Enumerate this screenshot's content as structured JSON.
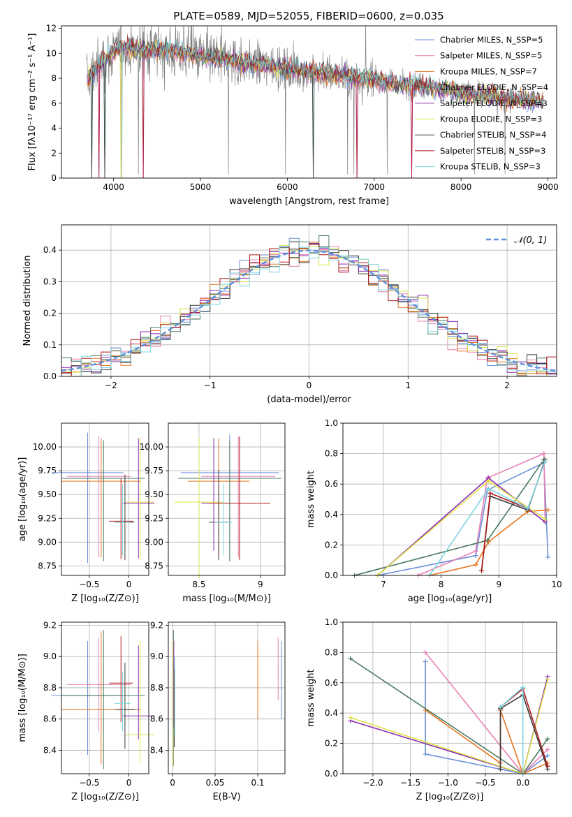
{
  "figure": {
    "title": "PLATE=0589, MJD=52055, FIBERID=0600, z=0.035"
  },
  "chart_data": [
    {
      "type": "line",
      "panel": "spectrum",
      "xlabel": "wavelength [Angstrom, rest frame]",
      "ylabel": "Flux [fλ10⁻¹⁷ erg cm⁻² s⁻¹ A⁻¹]",
      "xlim": [
        3400,
        9100
      ],
      "ylim": [
        0,
        12.2
      ],
      "xticks": [
        4000,
        5000,
        6000,
        7000,
        8000,
        9000
      ],
      "yticks": [
        0,
        2,
        4,
        6,
        8,
        10,
        12
      ],
      "legend_position": "top-right",
      "legend": [
        {
          "name": "Chabrier MILES, N_SSP=5",
          "color": "#6b8fd9"
        },
        {
          "name": "Salpeter MILES, N_SSP=5",
          "color": "#e880b4"
        },
        {
          "name": "Kroupa MILES, N_SSP=7",
          "color": "#e6731e"
        },
        {
          "name": "Chabrier ELODIE, N_SSP=4",
          "color": "#4a7a5e"
        },
        {
          "name": "Salpeter ELODIE, N_SSP=3",
          "color": "#8a2bb0"
        },
        {
          "name": "Kroupa ELODIE, N_SSP=3",
          "color": "#dde34a"
        },
        {
          "name": "Chabrier STELIB, N_SSP=4",
          "color": "#3a3a3a"
        },
        {
          "name": "Salpeter STELIB, N_SSP=3",
          "color": "#b01818"
        },
        {
          "name": "Kroupa STELIB, N_SSP=3",
          "color": "#7fd6e0"
        }
      ],
      "data_envelope": {
        "x": [
          3700,
          3900,
          4100,
          4300,
          4500,
          4700,
          4900,
          5100,
          5300,
          5500,
          5700,
          5900,
          6100,
          6300,
          6500,
          6700,
          6900,
          7100,
          7300,
          7500,
          7700,
          7900,
          8100,
          8300,
          8500,
          8700,
          8900
        ],
        "y": [
          8.0,
          9.6,
          10.5,
          10.2,
          10.3,
          10.1,
          9.9,
          9.6,
          9.5,
          9.3,
          9.1,
          8.9,
          8.7,
          8.5,
          8.4,
          8.1,
          8.0,
          7.8,
          7.5,
          7.4,
          7.2,
          6.9,
          6.7,
          6.6,
          6.4,
          6.3,
          6.2
        ]
      },
      "model_dips_x": [
        3750,
        3830,
        3900,
        4090,
        4340,
        6300,
        6800,
        7430
      ]
    },
    {
      "type": "histogram",
      "panel": "residuals",
      "xlabel": "(data-model)/error",
      "ylabel": "Normed distribution",
      "xlim": [
        -2.5,
        2.5
      ],
      "ylim": [
        0,
        0.48
      ],
      "xticks": [
        -2,
        -1,
        0,
        1,
        2
      ],
      "yticks": [
        0.0,
        0.1,
        0.2,
        0.3,
        0.4
      ],
      "grid": true,
      "legend_position": "top-right",
      "legend": [
        {
          "name": "𝒩(0, 1)",
          "color": "#5b8ddb"
        }
      ],
      "bin_width": 0.1
    },
    {
      "type": "scatter",
      "panel": "age-vs-Z",
      "xlabel": "Z [log₁₀(Z/Z⊙)]",
      "ylabel": "age  [log₁₀(age/yr)]",
      "xlim": [
        -0.85,
        0.25
      ],
      "ylim": [
        8.65,
        10.25
      ],
      "xticks": [
        -0.5,
        0.0
      ],
      "yticks": [
        8.75,
        9.0,
        9.25,
        9.5,
        9.75,
        10.0
      ],
      "grid": true,
      "points": [
        {
          "x": -0.52,
          "y": 9.73,
          "xerr": 0.45,
          "yerr_lo": 0.95,
          "yerr_hi": 0.42,
          "color": "#6b8fd9"
        },
        {
          "x": -0.38,
          "y": 9.69,
          "xerr": 0.4,
          "yerr_lo": 0.85,
          "yerr_hi": 0.42,
          "color": "#e880b4"
        },
        {
          "x": -0.35,
          "y": 9.64,
          "xerr": 0.5,
          "yerr_lo": 0.8,
          "yerr_hi": 0.45,
          "color": "#e6731e"
        },
        {
          "x": -0.32,
          "y": 9.67,
          "xerr": 0.52,
          "yerr_lo": 0.87,
          "yerr_hi": 0.4,
          "color": "#4a7a5e"
        },
        {
          "x": 0.12,
          "y": 9.41,
          "xerr": 0.2,
          "yerr_lo": 0.58,
          "yerr_hi": 0.68,
          "color": "#8a2bb0"
        },
        {
          "x": 0.14,
          "y": 9.42,
          "xerr": 0.18,
          "yerr_lo": 0.6,
          "yerr_hi": 0.68,
          "color": "#dde34a"
        },
        {
          "x": -0.05,
          "y": 9.21,
          "xerr": 0.12,
          "yerr_lo": 0.4,
          "yerr_hi": 0.5,
          "color": "#3a3a3a"
        },
        {
          "x": -0.1,
          "y": 9.22,
          "xerr": 0.15,
          "yerr_lo": 0.4,
          "yerr_hi": 0.45,
          "color": "#b01818"
        },
        {
          "x": -0.08,
          "y": 9.21,
          "xerr": 0.1,
          "yerr_lo": 0.35,
          "yerr_hi": 0.4,
          "color": "#7fd6e0"
        }
      ]
    },
    {
      "type": "scatter",
      "panel": "age-vs-mass",
      "xlabel": "mass [log₁₀(M/M⊙)]",
      "xlim": [
        8.25,
        9.2
      ],
      "ylim": [
        8.65,
        10.25
      ],
      "xticks": [
        8.5,
        9.0
      ],
      "yticks": [
        8.75,
        9.0,
        9.25,
        9.5,
        9.75,
        10.0
      ],
      "grid": true,
      "points": [
        {
          "x": 8.75,
          "y": 9.73,
          "xerr": 0.4,
          "yerr_lo": 0.93,
          "yerr_hi": 0.4,
          "color": "#6b8fd9"
        },
        {
          "x": 8.82,
          "y": 9.69,
          "xerr": 0.3,
          "yerr_lo": 0.85,
          "yerr_hi": 0.42,
          "color": "#e880b4"
        },
        {
          "x": 8.66,
          "y": 9.64,
          "xerr": 0.25,
          "yerr_lo": 0.8,
          "yerr_hi": 0.45,
          "color": "#e6731e"
        },
        {
          "x": 8.75,
          "y": 9.67,
          "xerr": 0.42,
          "yerr_lo": 0.87,
          "yerr_hi": 0.4,
          "color": "#4a7a5e"
        },
        {
          "x": 8.62,
          "y": 9.41,
          "xerr": 0.1,
          "yerr_lo": 0.5,
          "yerr_hi": 0.68,
          "color": "#8a2bb0"
        },
        {
          "x": 8.5,
          "y": 9.42,
          "xerr": 0.2,
          "yerr_lo": 0.8,
          "yerr_hi": 0.68,
          "color": "#dde34a"
        },
        {
          "x": 8.66,
          "y": 9.21,
          "xerr": 0.08,
          "yerr_lo": 0.4,
          "yerr_hi": 0.55,
          "color": "#3a3a3a"
        },
        {
          "x": 8.83,
          "y": 9.41,
          "xerr": 0.25,
          "yerr_lo": 0.6,
          "yerr_hi": 0.7,
          "color": "#b01818"
        },
        {
          "x": 8.7,
          "y": 9.21,
          "xerr": 0.07,
          "yerr_lo": 0.35,
          "yerr_hi": 0.4,
          "color": "#7fd6e0"
        }
      ]
    },
    {
      "type": "line",
      "panel": "mass-weight-vs-age",
      "xlabel": "age  [log₁₀(age/yr)]",
      "ylabel": "mass weight",
      "xlim": [
        6.3,
        10.0
      ],
      "ylim": [
        0,
        1.0
      ],
      "xticks": [
        7,
        8,
        9,
        10
      ],
      "yticks": [
        0.0,
        0.2,
        0.4,
        0.6,
        0.8,
        1.0
      ],
      "grid": true,
      "series": [
        {
          "color": "#6b8fd9",
          "points": [
            [
              6.9,
              0.0
            ],
            [
              8.6,
              0.13
            ],
            [
              8.8,
              0.56
            ],
            [
              9.78,
              0.74
            ],
            [
              9.85,
              0.12
            ]
          ]
        },
        {
          "color": "#e880b4",
          "points": [
            [
              7.6,
              0.0
            ],
            [
              8.6,
              0.16
            ],
            [
              8.8,
              0.64
            ],
            [
              9.78,
              0.8
            ],
            [
              9.8,
              0.36
            ]
          ]
        },
        {
          "color": "#e6731e",
          "points": [
            [
              7.8,
              0.0
            ],
            [
              8.6,
              0.07
            ],
            [
              8.82,
              0.22
            ],
            [
              9.5,
              0.42
            ],
            [
              9.85,
              0.43
            ]
          ]
        },
        {
          "color": "#4a7a5e",
          "points": [
            [
              6.5,
              0.0
            ],
            [
              8.8,
              0.23
            ],
            [
              9.78,
              0.76
            ]
          ]
        },
        {
          "color": "#8a2bb0",
          "points": [
            [
              6.9,
              0.0
            ],
            [
              8.82,
              0.64
            ],
            [
              9.8,
              0.35
            ]
          ]
        },
        {
          "color": "#dde34a",
          "points": [
            [
              6.9,
              0.0
            ],
            [
              8.82,
              0.62
            ],
            [
              9.8,
              0.37
            ]
          ]
        },
        {
          "color": "#3a3a3a",
          "points": [
            [
              8.7,
              0.03
            ],
            [
              8.85,
              0.52
            ],
            [
              9.5,
              0.43
            ],
            [
              9.8,
              0.76
            ]
          ]
        },
        {
          "color": "#b01818",
          "points": [
            [
              8.7,
              0.03
            ],
            [
              8.85,
              0.54
            ],
            [
              9.5,
              0.44
            ]
          ]
        },
        {
          "color": "#7fd6e0",
          "points": [
            [
              7.8,
              0.0
            ],
            [
              8.82,
              0.57
            ],
            [
              9.5,
              0.44
            ],
            [
              9.8,
              0.75
            ]
          ]
        }
      ]
    },
    {
      "type": "scatter",
      "panel": "mass-vs-Z",
      "xlabel": "Z [log₁₀(Z/Z⊙)]",
      "ylabel": "mass [log₁₀(M/M⊙)]",
      "xlim": [
        -0.85,
        0.25
      ],
      "ylim": [
        8.25,
        9.22
      ],
      "xticks": [
        -0.5,
        0.0
      ],
      "yticks": [
        8.4,
        8.6,
        8.8,
        9.0,
        9.2
      ],
      "grid": true,
      "points": [
        {
          "x": -0.52,
          "y": 8.75,
          "xerr": 0.45,
          "yerr_lo": 0.38,
          "yerr_hi": 0.35,
          "color": "#6b8fd9"
        },
        {
          "x": -0.38,
          "y": 8.82,
          "xerr": 0.4,
          "yerr_lo": 0.3,
          "yerr_hi": 0.3,
          "color": "#e880b4"
        },
        {
          "x": -0.35,
          "y": 8.66,
          "xerr": 0.5,
          "yerr_lo": 0.35,
          "yerr_hi": 0.5,
          "color": "#e6731e"
        },
        {
          "x": -0.32,
          "y": 8.75,
          "xerr": 0.52,
          "yerr_lo": 0.47,
          "yerr_hi": 0.42,
          "color": "#4a7a5e"
        },
        {
          "x": 0.12,
          "y": 8.62,
          "xerr": 0.2,
          "yerr_lo": 0.15,
          "yerr_hi": 0.45,
          "color": "#8a2bb0"
        },
        {
          "x": 0.14,
          "y": 8.5,
          "xerr": 0.18,
          "yerr_lo": 0.18,
          "yerr_hi": 0.6,
          "color": "#dde34a"
        },
        {
          "x": -0.05,
          "y": 8.66,
          "xerr": 0.12,
          "yerr_lo": 0.25,
          "yerr_hi": 0.3,
          "color": "#3a3a3a"
        },
        {
          "x": -0.1,
          "y": 8.83,
          "xerr": 0.15,
          "yerr_lo": 0.25,
          "yerr_hi": 0.3,
          "color": "#b01818"
        },
        {
          "x": -0.08,
          "y": 8.7,
          "xerr": 0.1,
          "yerr_lo": 0.18,
          "yerr_hi": 0.2,
          "color": "#7fd6e0"
        }
      ]
    },
    {
      "type": "scatter",
      "panel": "mass-vs-ebv",
      "xlabel": "E(B-V)",
      "xlim": [
        -0.005,
        0.132
      ],
      "ylim": [
        8.25,
        9.22
      ],
      "xticks": [
        0.0,
        0.05,
        0.1
      ],
      "yticks": [
        8.4,
        8.6,
        8.8,
        9.0,
        9.2
      ],
      "grid": true,
      "points": [
        {
          "x": 0.128,
          "y": 8.8,
          "yerr_lo": 0.2,
          "yerr_hi": 0.3,
          "color": "#6b8fd9"
        },
        {
          "x": 0.124,
          "y": 8.9,
          "yerr_lo": 0.18,
          "yerr_hi": 0.22,
          "color": "#e880b4"
        },
        {
          "x": 0.1,
          "y": 8.8,
          "yerr_lo": 0.2,
          "yerr_hi": 0.3,
          "color": "#e6731e"
        },
        {
          "x": 0.001,
          "y": 8.75,
          "yerr_lo": 0.45,
          "yerr_hi": 0.42,
          "color": "#4a7a5e"
        },
        {
          "x": 0.0015,
          "y": 8.7,
          "yerr_lo": 0.15,
          "yerr_hi": 0.4,
          "color": "#8a2bb0"
        },
        {
          "x": 0.0005,
          "y": 8.6,
          "yerr_lo": 0.3,
          "yerr_hi": 0.5,
          "color": "#dde34a"
        },
        {
          "x": 0.002,
          "y": 8.62,
          "yerr_lo": 0.2,
          "yerr_hi": 0.3,
          "color": "#3a3a3a"
        },
        {
          "x": 0.0025,
          "y": 8.75,
          "yerr_lo": 0.25,
          "yerr_hi": 0.25,
          "color": "#7fd6e0"
        }
      ]
    },
    {
      "type": "line",
      "panel": "mass-weight-vs-Z",
      "xlabel": "Z [log₁₀(Z/Z⊙)]",
      "ylabel": "mass weight",
      "xlim": [
        -2.4,
        0.45
      ],
      "ylim": [
        0,
        1.0
      ],
      "xticks": [
        -2.0,
        -1.5,
        -1.0,
        -0.5,
        0.0
      ],
      "yticks": [
        0.0,
        0.2,
        0.4,
        0.6,
        0.8,
        1.0
      ],
      "grid": true,
      "series": [
        {
          "color": "#6b8fd9",
          "points": [
            [
              -1.3,
              0.74
            ],
            [
              -1.3,
              0.13
            ],
            [
              0.0,
              0.0
            ],
            [
              0.33,
              0.12
            ]
          ]
        },
        {
          "color": "#e880b4",
          "points": [
            [
              -1.3,
              0.8
            ],
            [
              0.0,
              0.0
            ],
            [
              0.33,
              0.16
            ]
          ]
        },
        {
          "color": "#e6731e",
          "points": [
            [
              -1.3,
              0.42
            ],
            [
              -0.3,
              0.07
            ],
            [
              -0.3,
              0.42
            ],
            [
              0.0,
              0.0
            ],
            [
              0.33,
              0.07
            ]
          ]
        },
        {
          "color": "#4a7a5e",
          "points": [
            [
              -2.3,
              0.76
            ],
            [
              0.0,
              0.0
            ],
            [
              0.33,
              0.23
            ]
          ]
        },
        {
          "color": "#8a2bb0",
          "points": [
            [
              -2.3,
              0.35
            ],
            [
              0.0,
              0.0
            ],
            [
              0.33,
              0.64
            ]
          ]
        },
        {
          "color": "#dde34a",
          "points": [
            [
              -2.3,
              0.37
            ],
            [
              0.0,
              0.0
            ],
            [
              0.33,
              0.62
            ]
          ]
        },
        {
          "color": "#3a3a3a",
          "points": [
            [
              -0.3,
              0.03
            ],
            [
              -0.3,
              0.43
            ],
            [
              0.0,
              0.52
            ],
            [
              0.33,
              0.03
            ]
          ]
        },
        {
          "color": "#b01818",
          "points": [
            [
              -0.3,
              0.44
            ],
            [
              0.0,
              0.56
            ],
            [
              0.33,
              0.05
            ]
          ]
        },
        {
          "color": "#7fd6e0",
          "points": [
            [
              -0.3,
              0.44
            ],
            [
              0.0,
              0.57
            ],
            [
              0.0,
              0.0
            ]
          ]
        }
      ]
    }
  ]
}
